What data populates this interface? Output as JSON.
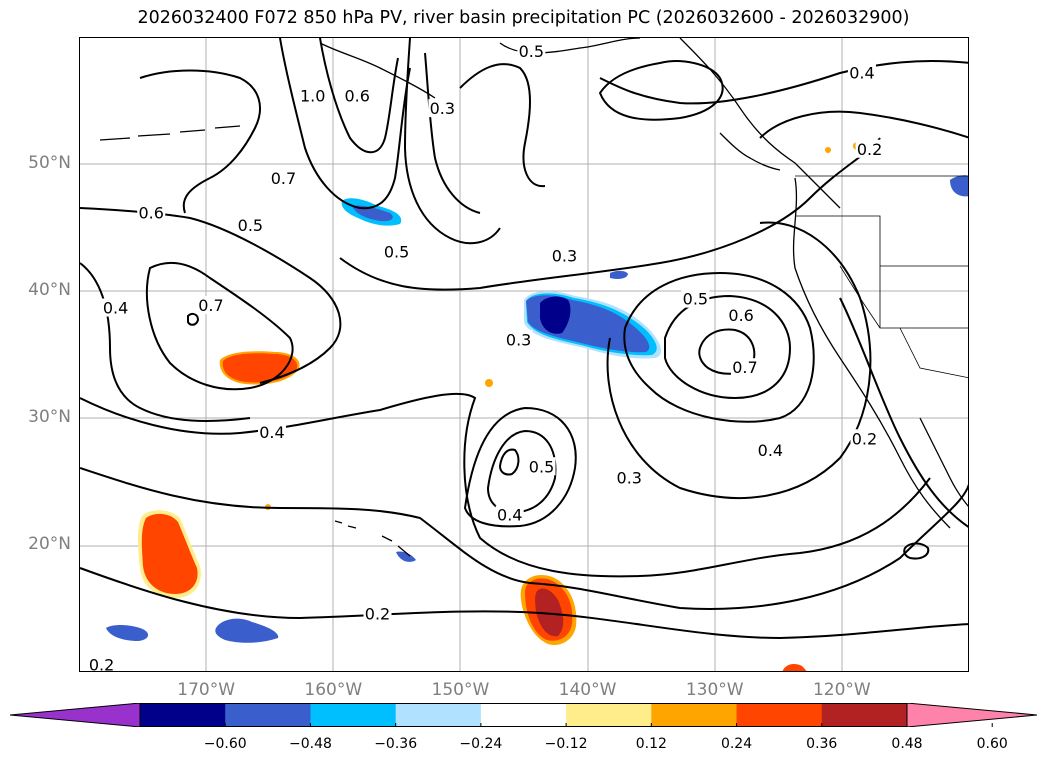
{
  "title": "2026032400 F072 850 hPa PV, river basin precipitation PC (2026032600 - 2026032900)",
  "map": {
    "lat_ticks": [
      {
        "lat": 50,
        "label": "50°N"
      },
      {
        "lat": 40,
        "label": "40°N"
      },
      {
        "lat": 30,
        "label": "30°N"
      },
      {
        "lat": 20,
        "label": "20°N"
      }
    ],
    "lon_ticks": [
      {
        "lon": -170,
        "label": "170°W"
      },
      {
        "lon": -160,
        "label": "160°W"
      },
      {
        "lon": -150,
        "label": "150°W"
      },
      {
        "lon": -140,
        "label": "140°W"
      },
      {
        "lon": -130,
        "label": "130°W"
      },
      {
        "lon": -120,
        "label": "120°W"
      }
    ],
    "contour_labels": [
      {
        "text": "0.5",
        "lon": -144.5,
        "lat": 58.9
      },
      {
        "text": "0.4",
        "lon": -118.5,
        "lat": 57.2
      },
      {
        "text": "1.0",
        "lon": -161.7,
        "lat": 55.4
      },
      {
        "text": "0.6",
        "lon": -158.2,
        "lat": 55.4
      },
      {
        "text": "0.3",
        "lon": -151.5,
        "lat": 54.4
      },
      {
        "text": "0.2",
        "lon": -117.9,
        "lat": 51.2
      },
      {
        "text": "0.7",
        "lon": -164.0,
        "lat": 48.9
      },
      {
        "text": "0.6",
        "lon": -174.4,
        "lat": 46.2
      },
      {
        "text": "0.5",
        "lon": -166.6,
        "lat": 45.2
      },
      {
        "text": "0.5",
        "lon": -155.1,
        "lat": 43.1
      },
      {
        "text": "0.3",
        "lon": -141.9,
        "lat": 42.8
      },
      {
        "text": "0.7",
        "lon": -169.7,
        "lat": 38.9
      },
      {
        "text": "0.4",
        "lon": -177.2,
        "lat": 38.7
      },
      {
        "text": "0.5",
        "lon": -131.6,
        "lat": 39.4
      },
      {
        "text": "0.6",
        "lon": -128.0,
        "lat": 38.1
      },
      {
        "text": "0.3",
        "lon": -145.5,
        "lat": 36.2
      },
      {
        "text": "0.7",
        "lon": -127.7,
        "lat": 34.0
      },
      {
        "text": "0.4",
        "lon": -164.9,
        "lat": 28.9
      },
      {
        "text": "0.2",
        "lon": -118.3,
        "lat": 28.4
      },
      {
        "text": "0.4",
        "lon": -125.7,
        "lat": 27.5
      },
      {
        "text": "0.5",
        "lon": -143.7,
        "lat": 26.2
      },
      {
        "text": "0.3",
        "lon": -136.8,
        "lat": 25.3
      },
      {
        "text": "0.4",
        "lon": -146.2,
        "lat": 22.4
      },
      {
        "text": "0.2",
        "lon": -156.6,
        "lat": 14.6
      },
      {
        "text": "0.2",
        "lon": -178.3,
        "lat": 10.6
      }
    ]
  },
  "colorbar": {
    "colors": [
      "#9932cc",
      "#00008b",
      "#3a5fcd",
      "#00bfff",
      "#b0e2ff",
      "#ffffff",
      "#ffec8b",
      "#ffa500",
      "#ff4500",
      "#b22222",
      "#ff82ab"
    ],
    "tick_labels": [
      "−0.60",
      "−0.48",
      "−0.36",
      "−0.24",
      "−0.12",
      "0.12",
      "0.24",
      "0.36",
      "0.48",
      "0.60"
    ]
  }
}
